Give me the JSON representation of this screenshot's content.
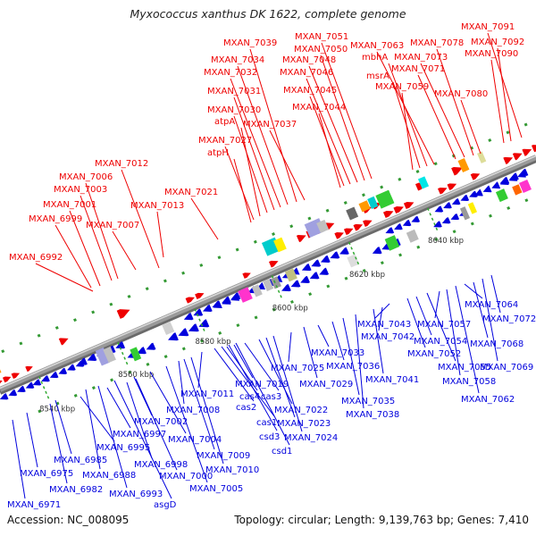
{
  "title": "Myxococcus xanthus DK 1622, complete genome",
  "footer": {
    "accession": "Accession: NC_008095",
    "summary": "Topology: circular; Length: 9,139,763 bp; Genes: 7,410"
  },
  "colors": {
    "forward_strand": "#ee0000",
    "reverse_strand": "#0000dd",
    "backbone": "#9a9a9a"
  },
  "scale_ticks": [
    "8540 kbp",
    "8560 kbp",
    "8580 kbp",
    "8600 kbp",
    "8620 kbp",
    "8640 kbp"
  ],
  "top_labels": [
    "MXAN_6992",
    "MXAN_6999",
    "MXAN_7001",
    "MXAN_7003",
    "MXAN_7006",
    "MXAN_7012",
    "MXAN_7007",
    "MXAN_7013",
    "MXAN_7021",
    "atpH",
    "MXAN_7027",
    "atpA",
    "MXAN_7030",
    "MXAN_7031",
    "MXAN_7032",
    "MXAN_7034",
    "MXAN_7039",
    "MXAN_7037",
    "MXAN_7044",
    "MXAN_7045",
    "MXAN_7046",
    "MXAN_7048",
    "MXAN_7050",
    "MXAN_7051",
    "MXAN_7059",
    "msrA",
    "mbhA",
    "MXAN_7063",
    "MXAN_7071",
    "MXAN_7073",
    "MXAN_7078",
    "MXAN_7080",
    "MXAN_7090",
    "MXAN_7092",
    "MXAN_7091"
  ],
  "bottom_labels": [
    "MXAN_6971",
    "MXAN_6975",
    "MXAN_6982",
    "MXAN_6985",
    "MXAN_6988",
    "MXAN_6993",
    "asgD",
    "MXAN_6995",
    "MXAN_6997",
    "MXAN_6998",
    "MXAN_7000",
    "MXAN_7002",
    "MXAN_7004",
    "MXAN_7005",
    "MXAN_7008",
    "MXAN_7009",
    "MXAN_7010",
    "MXAN_7011",
    "csd1",
    "csd3",
    "cas1",
    "cas2",
    "cas4",
    "cas3",
    "MXAN_7019",
    "MXAN_7022",
    "MXAN_7023",
    "MXAN_7024",
    "MXAN_7025",
    "MXAN_7029",
    "MXAN_7033",
    "MXAN_7036",
    "MXAN_7035",
    "MXAN_7038",
    "MXAN_7041",
    "MXAN_7042",
    "MXAN_7043",
    "MXAN_7052",
    "MXAN_7054",
    "MXAN_7055",
    "MXAN_7057",
    "MXAN_7058",
    "MXAN_7062",
    "MXAN_7064",
    "MXAN_7068",
    "MXAN_7069",
    "MXAN_7072"
  ]
}
